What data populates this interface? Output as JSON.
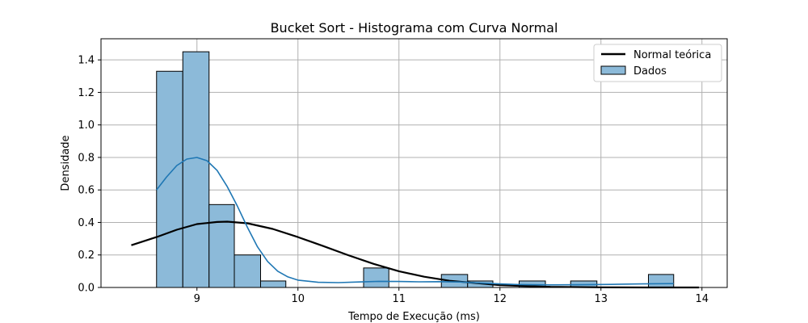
{
  "chart_data": {
    "type": "bar",
    "title": "Bucket Sort - Histograma com Curva Normal",
    "xlabel": "Tempo de Execução (ms)",
    "ylabel": "Densidade",
    "xlim": [
      8.05,
      14.25
    ],
    "ylim": [
      0,
      1.53
    ],
    "xticks": [
      9,
      10,
      11,
      12,
      13,
      14
    ],
    "yticks": [
      0.0,
      0.2,
      0.4,
      0.6,
      0.8,
      1.0,
      1.2,
      1.4
    ],
    "grid": true,
    "legend_position": "top-right",
    "histogram": {
      "name": "Dados",
      "color": "#8cbad9",
      "edge_color": "#000000",
      "bins": [
        {
          "x0": 8.6,
          "x1": 8.86,
          "density": 1.33
        },
        {
          "x0": 8.86,
          "x1": 9.12,
          "density": 1.45
        },
        {
          "x0": 9.12,
          "x1": 9.37,
          "density": 0.51
        },
        {
          "x0": 9.37,
          "x1": 9.63,
          "density": 0.2
        },
        {
          "x0": 9.63,
          "x1": 9.88,
          "density": 0.04
        },
        {
          "x0": 10.65,
          "x1": 10.9,
          "density": 0.12
        },
        {
          "x0": 11.42,
          "x1": 11.68,
          "density": 0.08
        },
        {
          "x0": 11.68,
          "x1": 11.93,
          "density": 0.04
        },
        {
          "x0": 12.19,
          "x1": 12.45,
          "density": 0.04
        },
        {
          "x0": 12.7,
          "x1": 12.96,
          "density": 0.04
        },
        {
          "x0": 13.47,
          "x1": 13.72,
          "density": 0.08
        }
      ]
    },
    "series": [
      {
        "name": "Normal teórica",
        "color": "#000000",
        "x": [
          8.35,
          8.6,
          8.8,
          9.0,
          9.2,
          9.3,
          9.5,
          9.75,
          10.0,
          10.25,
          10.5,
          10.75,
          11.0,
          11.25,
          11.5,
          12.0,
          12.5,
          13.0,
          13.5,
          13.97
        ],
        "y": [
          0.26,
          0.31,
          0.355,
          0.39,
          0.403,
          0.405,
          0.395,
          0.36,
          0.31,
          0.255,
          0.198,
          0.145,
          0.1,
          0.066,
          0.041,
          0.014,
          0.004,
          0.001,
          0.0,
          0.0
        ]
      },
      {
        "name": "",
        "color": "#1f77b4",
        "x": [
          8.6,
          8.7,
          8.8,
          8.9,
          9.0,
          9.1,
          9.2,
          9.3,
          9.4,
          9.5,
          9.6,
          9.7,
          9.8,
          9.9,
          10.0,
          10.2,
          10.4,
          10.6,
          10.8,
          11.0,
          11.2,
          11.4,
          11.6,
          11.8,
          12.0,
          12.2,
          12.5,
          12.8,
          13.1,
          13.4,
          13.72
        ],
        "y": [
          0.6,
          0.68,
          0.75,
          0.79,
          0.8,
          0.78,
          0.72,
          0.62,
          0.5,
          0.37,
          0.25,
          0.16,
          0.1,
          0.065,
          0.045,
          0.032,
          0.03,
          0.034,
          0.038,
          0.037,
          0.035,
          0.036,
          0.034,
          0.028,
          0.022,
          0.018,
          0.016,
          0.017,
          0.019,
          0.022,
          0.024
        ]
      }
    ]
  }
}
